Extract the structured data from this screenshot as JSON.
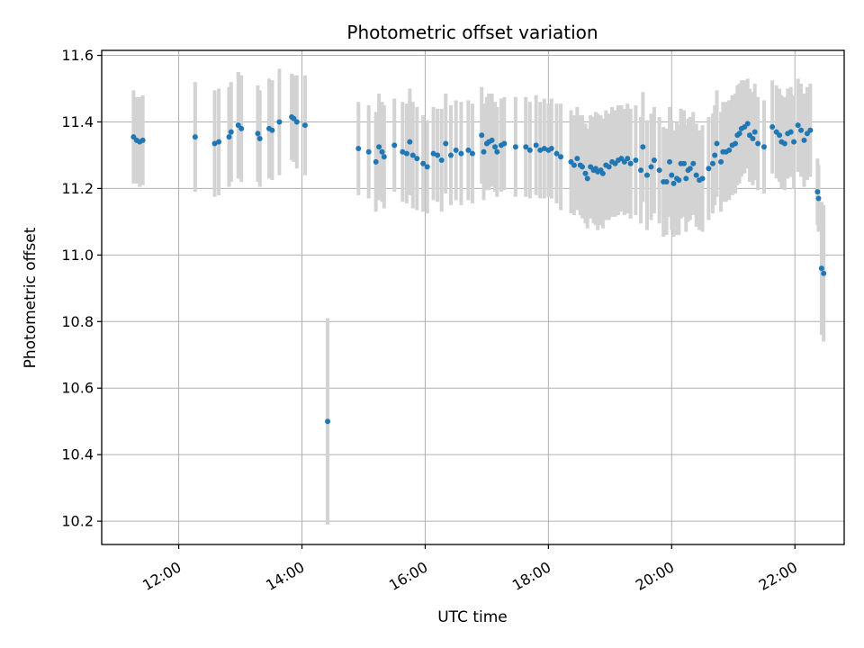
{
  "chart_data": {
    "type": "scatter",
    "title": "Photometric offset variation",
    "xlabel": "UTC time",
    "ylabel": "Photometric offset",
    "x_ticks": [
      "12:00",
      "14:00",
      "16:00",
      "18:00",
      "20:00",
      "22:00"
    ],
    "y_ticks": [
      "10.2",
      "10.4",
      "10.6",
      "10.8",
      "11.0",
      "11.2",
      "11.4",
      "11.6"
    ],
    "xlim": [
      "10:45",
      "22:48"
    ],
    "ylim": [
      10.13,
      11.615
    ],
    "grid": true,
    "point_color": "#1f77b4",
    "errorbar_color": "#d3d3d3",
    "points": [
      [
        "11:16",
        11.355,
        0.14
      ],
      [
        "11:19",
        11.345,
        0.13
      ],
      [
        "11:22",
        11.34,
        0.135
      ],
      [
        "11:25",
        11.345,
        0.135
      ],
      [
        "12:16",
        11.355,
        0.165
      ],
      [
        "12:35",
        11.335,
        0.16
      ],
      [
        "12:39",
        11.34,
        0.16
      ],
      [
        "12:49",
        11.355,
        0.15
      ],
      [
        "12:51",
        11.37,
        0.15
      ],
      [
        "12:58",
        11.39,
        0.16
      ],
      [
        "13:01",
        11.38,
        0.16
      ],
      [
        "13:17",
        11.365,
        0.145
      ],
      [
        "13:19",
        11.35,
        0.145
      ],
      [
        "13:28",
        11.38,
        0.15
      ],
      [
        "13:31",
        11.375,
        0.15
      ],
      [
        "13:38",
        11.4,
        0.16
      ],
      [
        "13:50",
        11.415,
        0.13
      ],
      [
        "13:52",
        11.41,
        0.13
      ],
      [
        "13:55",
        11.4,
        0.14
      ],
      [
        "14:03",
        11.39,
        0.15
      ],
      [
        "14:25",
        10.5,
        0.31
      ],
      [
        "14:55",
        11.32,
        0.14
      ],
      [
        "15:05",
        11.31,
        0.14
      ],
      [
        "15:12",
        11.28,
        0.15
      ],
      [
        "15:15",
        11.325,
        0.16
      ],
      [
        "15:18",
        11.31,
        0.15
      ],
      [
        "15:20",
        11.295,
        0.155
      ],
      [
        "15:30",
        11.33,
        0.14
      ],
      [
        "15:38",
        11.31,
        0.15
      ],
      [
        "15:42",
        11.305,
        0.15
      ],
      [
        "15:45",
        11.34,
        0.16
      ],
      [
        "15:48",
        11.3,
        0.16
      ],
      [
        "15:52",
        11.29,
        0.155
      ],
      [
        "15:58",
        11.275,
        0.145
      ],
      [
        "16:02",
        11.265,
        0.14
      ],
      [
        "16:08",
        11.305,
        0.14
      ],
      [
        "16:12",
        11.3,
        0.14
      ],
      [
        "16:16",
        11.285,
        0.155
      ],
      [
        "16:20",
        11.335,
        0.15
      ],
      [
        "16:25",
        11.3,
        0.15
      ],
      [
        "16:30",
        11.315,
        0.15
      ],
      [
        "16:35",
        11.305,
        0.155
      ],
      [
        "16:42",
        11.315,
        0.15
      ],
      [
        "16:46",
        11.305,
        0.15
      ],
      [
        "16:55",
        11.36,
        0.145
      ],
      [
        "16:57",
        11.31,
        0.145
      ],
      [
        "17:00",
        11.335,
        0.14
      ],
      [
        "17:02",
        11.34,
        0.145
      ],
      [
        "17:05",
        11.345,
        0.14
      ],
      [
        "17:08",
        11.325,
        0.135
      ],
      [
        "17:10",
        11.31,
        0.135
      ],
      [
        "17:14",
        11.33,
        0.14
      ],
      [
        "17:17",
        11.335,
        0.14
      ],
      [
        "17:28",
        11.325,
        0.15
      ],
      [
        "17:38",
        11.325,
        0.15
      ],
      [
        "17:42",
        11.315,
        0.145
      ],
      [
        "17:48",
        11.33,
        0.15
      ],
      [
        "17:52",
        11.315,
        0.145
      ],
      [
        "17:56",
        11.32,
        0.15
      ],
      [
        "18:00",
        11.315,
        0.14
      ],
      [
        "18:03",
        11.32,
        0.15
      ],
      [
        "18:08",
        11.305,
        0.15
      ],
      [
        "18:12",
        11.295,
        0.16
      ],
      [
        "18:22",
        11.28,
        0.155
      ],
      [
        "18:25",
        11.27,
        0.15
      ],
      [
        "18:28",
        11.29,
        0.155
      ],
      [
        "18:31",
        11.27,
        0.15
      ],
      [
        "18:33",
        11.265,
        0.155
      ],
      [
        "18:36",
        11.245,
        0.15
      ],
      [
        "18:38",
        11.23,
        0.15
      ],
      [
        "18:41",
        11.265,
        0.155
      ],
      [
        "18:44",
        11.255,
        0.16
      ],
      [
        "18:46",
        11.26,
        0.17
      ],
      [
        "18:48",
        11.25,
        0.175
      ],
      [
        "18:51",
        11.255,
        0.165
      ],
      [
        "18:53",
        11.245,
        0.165
      ],
      [
        "18:56",
        11.27,
        0.165
      ],
      [
        "18:59",
        11.265,
        0.16
      ],
      [
        "19:02",
        11.28,
        0.165
      ],
      [
        "19:05",
        11.275,
        0.16
      ],
      [
        "19:08",
        11.285,
        0.165
      ],
      [
        "19:11",
        11.29,
        0.16
      ],
      [
        "19:14",
        11.28,
        0.16
      ],
      [
        "19:17",
        11.29,
        0.165
      ],
      [
        "19:20",
        11.275,
        0.165
      ],
      [
        "19:25",
        11.285,
        0.165
      ],
      [
        "19:30",
        11.255,
        0.16
      ],
      [
        "19:32",
        11.325,
        0.165
      ],
      [
        "19:36",
        11.24,
        0.165
      ],
      [
        "19:40",
        11.265,
        0.16
      ],
      [
        "19:43",
        11.285,
        0.16
      ],
      [
        "19:48",
        11.255,
        0.16
      ],
      [
        "19:52",
        11.22,
        0.165
      ],
      [
        "19:55",
        11.22,
        0.16
      ],
      [
        "19:58",
        11.28,
        0.165
      ],
      [
        "20:00",
        11.24,
        0.165
      ],
      [
        "20:02",
        11.215,
        0.16
      ],
      [
        "20:05",
        11.23,
        0.17
      ],
      [
        "20:07",
        11.225,
        0.165
      ],
      [
        "20:09",
        11.275,
        0.165
      ],
      [
        "20:12",
        11.275,
        0.16
      ],
      [
        "20:14",
        11.23,
        0.16
      ],
      [
        "20:16",
        11.255,
        0.155
      ],
      [
        "20:18",
        11.26,
        0.155
      ],
      [
        "20:21",
        11.275,
        0.155
      ],
      [
        "20:24",
        11.24,
        0.155
      ],
      [
        "20:27",
        11.225,
        0.15
      ],
      [
        "20:30",
        11.23,
        0.16
      ],
      [
        "20:36",
        11.26,
        0.155
      ],
      [
        "20:40",
        11.275,
        0.15
      ],
      [
        "20:42",
        11.3,
        0.15
      ],
      [
        "20:44",
        11.335,
        0.16
      ],
      [
        "20:48",
        11.28,
        0.15
      ],
      [
        "20:50",
        11.31,
        0.15
      ],
      [
        "20:53",
        11.31,
        0.15
      ],
      [
        "20:56",
        11.315,
        0.15
      ],
      [
        "20:59",
        11.33,
        0.15
      ],
      [
        "21:02",
        11.335,
        0.15
      ],
      [
        "21:04",
        11.36,
        0.15
      ],
      [
        "21:06",
        11.365,
        0.15
      ],
      [
        "21:08",
        11.38,
        0.145
      ],
      [
        "21:11",
        11.385,
        0.14
      ],
      [
        "21:14",
        11.395,
        0.135
      ],
      [
        "21:16",
        11.36,
        0.14
      ],
      [
        "21:19",
        11.35,
        0.14
      ],
      [
        "21:21",
        11.37,
        0.145
      ],
      [
        "21:24",
        11.335,
        0.14
      ],
      [
        "21:30",
        11.325,
        0.14
      ],
      [
        "21:38",
        11.385,
        0.14
      ],
      [
        "21:42",
        11.37,
        0.14
      ],
      [
        "21:45",
        11.36,
        0.14
      ],
      [
        "21:47",
        11.34,
        0.14
      ],
      [
        "21:50",
        11.335,
        0.14
      ],
      [
        "21:53",
        11.365,
        0.135
      ],
      [
        "21:56",
        11.37,
        0.135
      ],
      [
        "21:59",
        11.34,
        0.14
      ],
      [
        "22:03",
        11.39,
        0.14
      ],
      [
        "22:06",
        11.375,
        0.14
      ],
      [
        "22:09",
        11.345,
        0.14
      ],
      [
        "22:12",
        11.365,
        0.14
      ],
      [
        "22:15",
        11.375,
        0.14
      ],
      [
        "22:22",
        11.19,
        0.1
      ],
      [
        "22:23",
        11.17,
        0.1
      ],
      [
        "22:26",
        10.96,
        0.2
      ],
      [
        "22:28",
        10.945,
        0.205
      ]
    ]
  }
}
